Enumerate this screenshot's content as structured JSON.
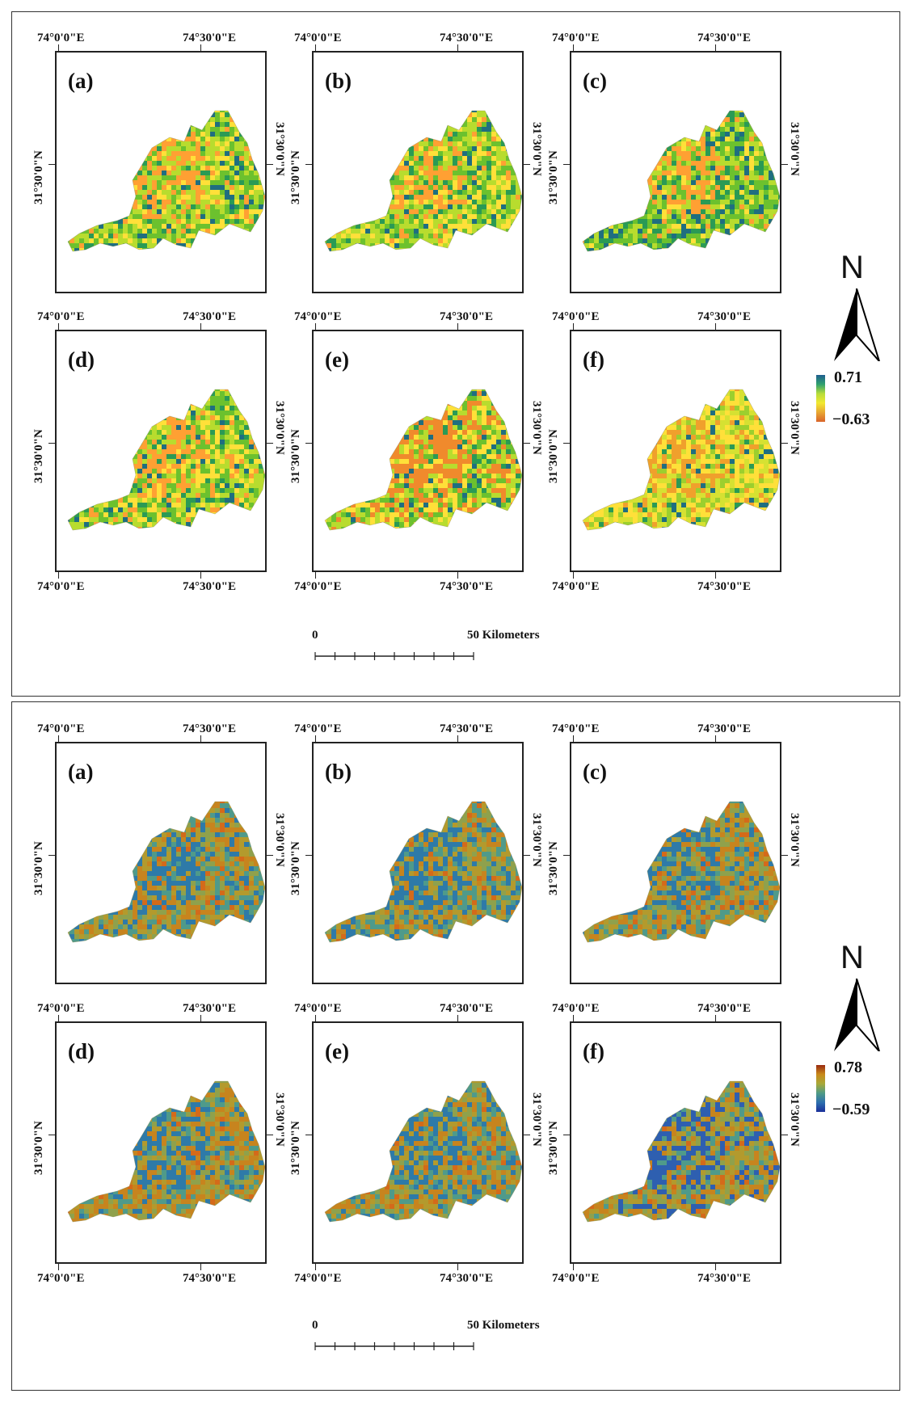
{
  "coords": {
    "lon_left": "74°0'0\"E",
    "lon_right": "74°30'0\"E",
    "lat": "31°30'0\"N"
  },
  "scale_bar": {
    "start_label": "0",
    "end_label": "50 Kilometers",
    "subdivisions": 8
  },
  "north_arrow": {
    "letter": "N"
  },
  "panels": [
    {
      "id": "top",
      "legend": {
        "max_label": "0.71",
        "min_label": "−0.63",
        "ramp_colors": [
          "#1f5e8f",
          "#2fa16e",
          "#b7dd3a",
          "#f2e830",
          "#e8a632",
          "#d9642a"
        ]
      },
      "maps": [
        {
          "label": "(a)",
          "palette": [
            "#ffe039",
            "#b8dc2e",
            "#6cc12e",
            "#2a9a55",
            "#ffa033",
            "#1f6e80"
          ],
          "weights": [
            3,
            5,
            4,
            2,
            2,
            1
          ]
        },
        {
          "label": "(b)",
          "palette": [
            "#ffe039",
            "#b8dc2e",
            "#6cc12e",
            "#2a9a55",
            "#ffa033",
            "#1f6e80"
          ],
          "weights": [
            3,
            5,
            4,
            2,
            1,
            1
          ]
        },
        {
          "label": "(c)",
          "palette": [
            "#ffe039",
            "#b8dc2e",
            "#6cc12e",
            "#2a9a55",
            "#ffa033",
            "#1f6e80"
          ],
          "weights": [
            2,
            4,
            5,
            3,
            1,
            2
          ]
        },
        {
          "label": "(d)",
          "palette": [
            "#ffe039",
            "#b8dc2e",
            "#6cc12e",
            "#2a9a55",
            "#ffa033",
            "#1f6e80"
          ],
          "weights": [
            4,
            5,
            4,
            2,
            2,
            1
          ]
        },
        {
          "label": "(e)",
          "palette": [
            "#ffe039",
            "#b8dc2e",
            "#6cc12e",
            "#2a9a55",
            "#f08a2c",
            "#1f6e80"
          ],
          "weights": [
            4,
            4,
            3,
            1,
            4,
            1
          ]
        },
        {
          "label": "(f)",
          "palette": [
            "#ffe039",
            "#d6e132",
            "#9ccf2e",
            "#2a9a55",
            "#f0a02c",
            "#1f6e80"
          ],
          "weights": [
            6,
            5,
            3,
            1,
            2,
            1
          ]
        }
      ]
    },
    {
      "id": "bottom",
      "legend": {
        "max_label": "0.78",
        "min_label": "−0.59",
        "ramp_colors": [
          "#9a2a10",
          "#c98a1a",
          "#a8a838",
          "#4f9b86",
          "#2d6fae",
          "#1a2f9a"
        ]
      },
      "maps": [
        {
          "label": "(a)",
          "palette": [
            "#c7841e",
            "#b39a2d",
            "#8fa14c",
            "#4f9a8a",
            "#2e7aa8",
            "#d46a1a"
          ],
          "weights": [
            4,
            4,
            3,
            3,
            2,
            1
          ]
        },
        {
          "label": "(b)",
          "palette": [
            "#c7841e",
            "#b39a2d",
            "#8fa14c",
            "#4f9a8a",
            "#2e7aa8",
            "#d46a1a"
          ],
          "weights": [
            3,
            4,
            3,
            4,
            3,
            1
          ]
        },
        {
          "label": "(c)",
          "palette": [
            "#c7841e",
            "#b39a2d",
            "#8fa14c",
            "#4f9a8a",
            "#2e7aa8",
            "#d46a1a"
          ],
          "weights": [
            4,
            4,
            3,
            3,
            2,
            1
          ]
        },
        {
          "label": "(d)",
          "palette": [
            "#c7841e",
            "#b39a2d",
            "#8fa14c",
            "#4f9a8a",
            "#2e7aa8",
            "#d46a1a"
          ],
          "weights": [
            5,
            4,
            3,
            3,
            2,
            1
          ]
        },
        {
          "label": "(e)",
          "palette": [
            "#c7841e",
            "#b39a2d",
            "#8fa14c",
            "#4f9a8a",
            "#2e7aa8",
            "#d46a1a"
          ],
          "weights": [
            5,
            4,
            3,
            3,
            2,
            1
          ]
        },
        {
          "label": "(f)",
          "palette": [
            "#c7841e",
            "#b39a2d",
            "#8fa14c",
            "#4f9a8a",
            "#2e5fb0",
            "#d46a1a"
          ],
          "weights": [
            4,
            4,
            3,
            3,
            3,
            1
          ]
        }
      ]
    }
  ]
}
